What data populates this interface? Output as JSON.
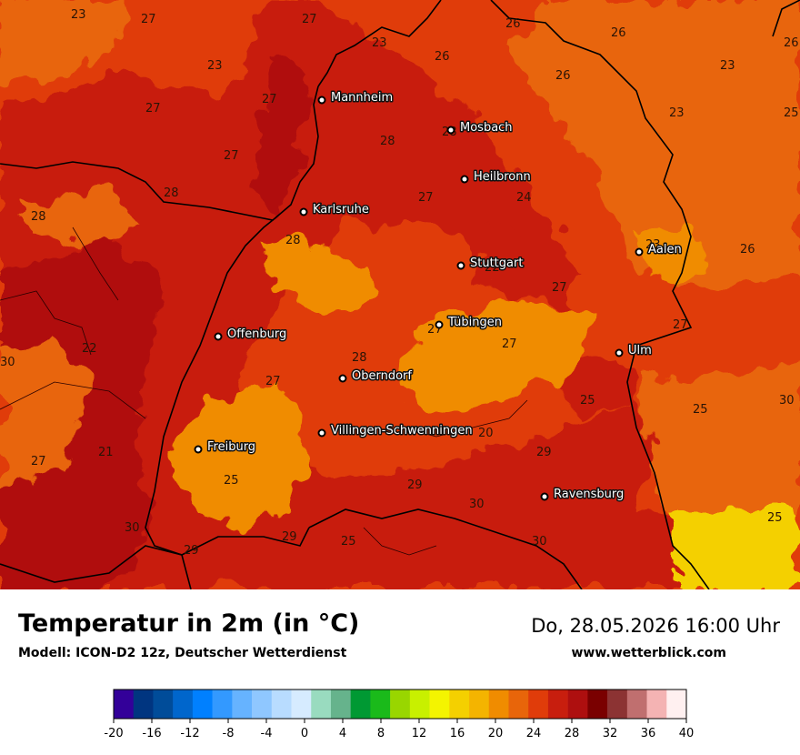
{
  "title": "Temperatur in 2m (in °C)",
  "model": "Modell: ICON-D2 12z, Deutscher Wetterdienst",
  "datetime": "Do, 28.05.2026 16:00 Uhr",
  "site": "www.wetterblick.com",
  "cities": [
    "Mannheim",
    "Mosbach",
    "Heilbronn",
    "Karlsruhe",
    "Aalen",
    "Stuttgart",
    "Tübingen",
    "Offenburg",
    "Ulm",
    "Oberndorf",
    "Villingen-Schwenningen",
    "Freiburg",
    "Ravensburg"
  ],
  "values": [
    "23",
    "27",
    "27",
    "23",
    "23",
    "26",
    "26",
    "26",
    "26",
    "26",
    "23",
    "27",
    "27",
    "28",
    "27",
    "23",
    "25",
    "28",
    "28",
    "27",
    "24",
    "28",
    "28",
    "23",
    "26",
    "27",
    "22",
    "27",
    "27",
    "22",
    "27",
    "30",
    "28",
    "27",
    "25",
    "25",
    "30",
    "21",
    "27",
    "20",
    "29",
    "25",
    "29",
    "30",
    "30",
    "29",
    "25",
    "29",
    "25",
    "30"
  ],
  "legend": {
    "colors": [
      "#330099",
      "#003580",
      "#004c99",
      "#0066cc",
      "#0080ff",
      "#3399ff",
      "#66b3ff",
      "#8fc7ff",
      "#b8dcff",
      "#d6ebff",
      "#99dbbf",
      "#66b38c",
      "#009933",
      "#1aba1a",
      "#99d600",
      "#c8f000",
      "#f4f400",
      "#f4d000",
      "#f4b400",
      "#f08c00",
      "#e8650a",
      "#e03c0a",
      "#c81e0e",
      "#ae0f0f",
      "#7a0000",
      "#8c3333",
      "#c06f6f",
      "#f4b3b3",
      "#fff0f0"
    ],
    "ticks": [
      "-20",
      "-16",
      "-12",
      "-8",
      "-4",
      "0",
      "4",
      "8",
      "12",
      "16",
      "20",
      "24",
      "28",
      "32",
      "36",
      "40"
    ]
  }
}
